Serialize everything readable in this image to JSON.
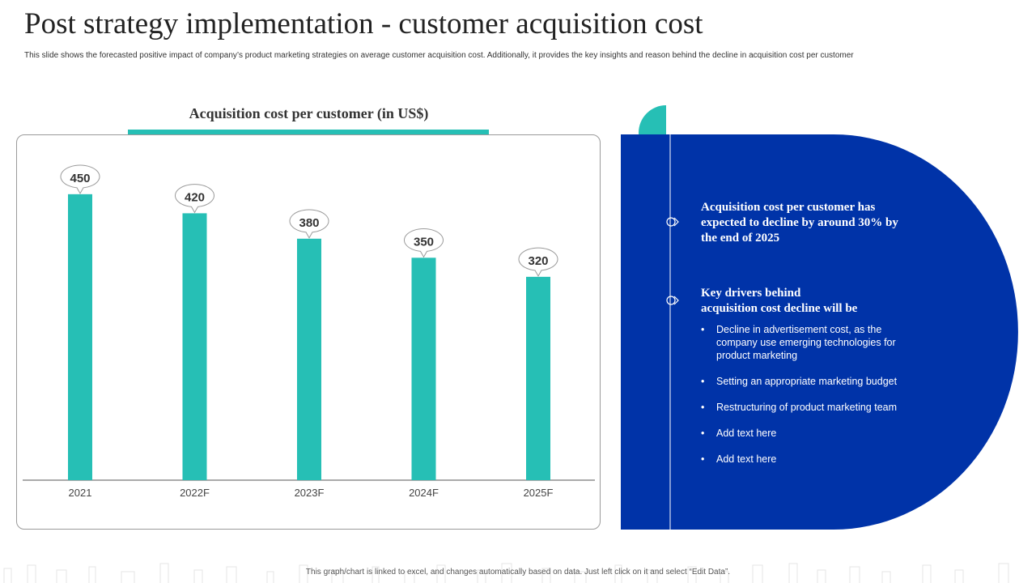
{
  "slide": {
    "title": "Post strategy implementation - customer acquisition cost",
    "subtitle": "This slide shows the forecasted positive impact of company’s product marketing strategies on average customer acquisition cost. Additionally, it provides the key insights and reason behind the decline in acquisition cost per customer",
    "footer": "This graph/chart is linked to excel, and changes automatically based on data. Just left click on it and select “Edit Data”."
  },
  "chart_data": {
    "type": "bar",
    "title": "Acquisition cost per customer (in US$)",
    "categories": [
      "2021",
      "2022F",
      "2023F",
      "2024F",
      "2025F"
    ],
    "values": [
      450,
      420,
      380,
      350,
      320
    ],
    "xlabel": "",
    "ylabel": "",
    "ylim": [
      0,
      460
    ],
    "grid": false,
    "data_labels": true,
    "bar_color": "#26BFB5"
  },
  "panel": {
    "background": "#0033A8",
    "accent": "#26BFB5",
    "insight1": {
      "line1": "Acquisition cost per customer has",
      "line2": "expected to decline by around 30% by",
      "line3": "the end of 2025"
    },
    "insight2": {
      "line1": "Key drivers behind",
      "line2": "acquisition cost decline will be",
      "bullets": [
        {
          "line1": "Decline in advertisement  cost, as the",
          "line2": "company use emerging technologies for",
          "line3": "product marketing"
        },
        {
          "line1": "Setting an appropriate  marketing budget"
        },
        {
          "line1": "Restructuring of product marketing team"
        },
        {
          "line1": "Add text here"
        },
        {
          "line1": "Add text here"
        }
      ]
    }
  }
}
